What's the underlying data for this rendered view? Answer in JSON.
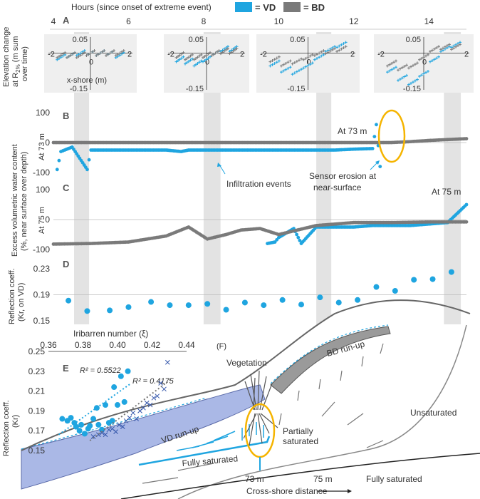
{
  "colors": {
    "vd": "#1fa5e0",
    "bd": "#7a7a7a",
    "highlight": "#f5b400",
    "band": "#e3e3e3",
    "vd_fill": "#aab8e6",
    "bd_fill": "#9a9a9a"
  },
  "header": {
    "hours_title": "Hours (since onset of extreme event)",
    "hour_ticks": [
      "4",
      "6",
      "8",
      "10",
      "12",
      "14"
    ],
    "legend_vd": "= VD",
    "legend_bd": "= BD"
  },
  "panel_a": {
    "letter": "A",
    "ylabel_1": "Elevation change",
    "ylabel_2": "at R",
    "ylabel_2_sub": "2%",
    "ylabel_2_tail": " (m sum",
    "ylabel_3": "over time)",
    "xlabel": "x-shore (m)",
    "insets": [
      {
        "ytop": "0.05",
        "ybot": "-0.15",
        "x_min": "-2",
        "x_zero": "0",
        "x_max": "2"
      },
      {
        "ytop": "0.05",
        "ybot": "-0.15",
        "x_min": "-2",
        "x_zero": "0",
        "x_max": "2"
      },
      {
        "ytop": "0.05",
        "ybot": "-0.15",
        "x_min": "-2",
        "x_zero": "0",
        "x_max": "2"
      },
      {
        "ytop": "0.05",
        "ybot": "-0.15",
        "x_min": "-2",
        "x_zero": "0",
        "x_max": "2"
      }
    ]
  },
  "panel_bc": {
    "ylabel_1": "Excess volumetric water content",
    "ylabel_2": "(%, near surface over depth)",
    "b_letter": "B",
    "b_sub": "At 73 m",
    "b_ticks": [
      "100",
      "0",
      "-100"
    ],
    "b_at": "At 73 m",
    "b_infiltration": "Infiltration events",
    "b_erosion_1": "Sensor erosion at",
    "b_erosion_2": "near-surface",
    "c_letter": "C",
    "c_sub": "At 75 m",
    "c_ticks": [
      "100",
      "0",
      "-100"
    ],
    "c_at": "At 75 m"
  },
  "panel_d": {
    "letter": "D",
    "ylabel_1": "Reflection coeff.",
    "ylabel_2": "(Kr, on VD)",
    "ticks": [
      "0.23",
      "0.19",
      "0.15"
    ]
  },
  "panel_e": {
    "letter": "E",
    "xlabel": "Iribarren number (ξ)",
    "xticks": [
      "0.36",
      "0.38",
      "0.40",
      "0.42",
      "0.44"
    ],
    "ylabel_1": "Reflection coeff.",
    "ylabel_2": "(Kr)",
    "yticks": [
      "0.25",
      "0.23",
      "0.21",
      "0.19",
      "0.17",
      "0.15"
    ],
    "r2_vd": "R² = 0.5522",
    "r2_bd": "R² = 0.4175"
  },
  "panel_f": {
    "letter": "(F)",
    "vegetation": "Vegetation",
    "bd_runup": "BD run-up",
    "vd_runup": "VD run-up",
    "partially_1": "Partially",
    "partially_2": "saturated",
    "fully_saturated_left": "Fully saturated",
    "fully_saturated_right": "Fully saturated",
    "unsaturated": "Unsaturated",
    "m73": "73 m",
    "m75": "75 m",
    "xlabel": "Cross-shore distance"
  },
  "chart_data": [
    {
      "type": "scatter",
      "panel": "A",
      "xlabel": "x-shore (m)",
      "xlim": [
        -2,
        2
      ],
      "ylim": [
        -0.15,
        0.05
      ],
      "series": [
        {
          "name": "VD",
          "insets": [
            {
              "x": [
                -1.5,
                -1.0,
                -0.5,
                0.0,
                0.5,
                1.0,
                1.5
              ],
              "y": [
                -0.02,
                -0.01,
                0.0,
                0.0,
                0.0,
                0.0,
                -0.01
              ]
            },
            {
              "x": [
                -1.5,
                -1.0,
                -0.5,
                0.0,
                0.5,
                1.0,
                1.5
              ],
              "y": [
                -0.03,
                -0.04,
                -0.05,
                -0.03,
                0.0,
                0.02,
                0.02
              ]
            },
            {
              "x": [
                -1.5,
                -1.0,
                -0.5,
                0.0,
                0.5,
                1.0,
                1.5
              ],
              "y": [
                -0.05,
                -0.08,
                -0.09,
                -0.06,
                -0.02,
                0.02,
                0.04
              ]
            },
            {
              "x": [
                -1.5,
                -1.0,
                -0.5,
                0.0,
                0.5,
                1.0,
                1.5
              ],
              "y": [
                -0.08,
                -0.12,
                -0.14,
                -0.1,
                -0.03,
                0.02,
                0.04
              ]
            }
          ]
        },
        {
          "name": "BD",
          "insets": [
            {
              "x": [
                -1.5,
                -1.0,
                -0.5,
                0.0,
                0.5,
                1.0,
                1.5
              ],
              "y": [
                -0.01,
                -0.01,
                -0.01,
                0.0,
                0.0,
                0.0,
                0.0
              ]
            },
            {
              "x": [
                -1.5,
                -1.0,
                -0.5,
                0.0,
                0.5,
                1.0,
                1.5
              ],
              "y": [
                -0.01,
                -0.02,
                -0.02,
                -0.01,
                0.0,
                0.01,
                0.01
              ]
            },
            {
              "x": [
                -1.5,
                -1.0,
                -0.5,
                0.0,
                0.5,
                1.0,
                1.5
              ],
              "y": [
                -0.03,
                -0.05,
                -0.04,
                -0.02,
                0.0,
                0.01,
                0.02
              ]
            },
            {
              "x": [
                -1.5,
                -1.0,
                -0.5,
                0.0,
                0.5,
                1.0,
                1.5
              ],
              "y": [
                -0.05,
                -0.07,
                -0.06,
                -0.02,
                0.02,
                0.03,
                0.03
              ]
            }
          ]
        }
      ]
    },
    {
      "type": "scatter",
      "panel": "B",
      "title": "At 73 m",
      "xlabel": "Hours (since onset of extreme event)",
      "xlim": [
        4,
        15
      ],
      "ylim": [
        -100,
        100
      ],
      "series": [
        {
          "name": "VD",
          "x": [
            4.1,
            4.2,
            4.3,
            4.5,
            4.9,
            5.0,
            5.5,
            6.0,
            6.5,
            7.0,
            7.4,
            7.6,
            8.0,
            8.5,
            9.0,
            9.5,
            10.0,
            10.5,
            11.0,
            11.5,
            12.0,
            12.5,
            12.6,
            12.7
          ],
          "y": [
            -90,
            -30,
            -25,
            -15,
            -90,
            -25,
            -25,
            -25,
            -25,
            -25,
            -30,
            -25,
            -25,
            -25,
            -25,
            -25,
            -25,
            -25,
            -25,
            -25,
            -22,
            -20,
            60,
            -80
          ]
        },
        {
          "name": "BD",
          "x": [
            4.0,
            5.0,
            6.0,
            7.0,
            8.0,
            9.0,
            10.0,
            11.0,
            12.0,
            12.5,
            13.0,
            13.5,
            14.0,
            14.5,
            15.0
          ],
          "y": [
            0,
            0,
            0,
            0,
            0,
            0,
            0,
            0,
            0,
            0,
            0,
            3,
            7,
            10,
            13
          ]
        }
      ]
    },
    {
      "type": "scatter",
      "panel": "C",
      "title": "At 75 m",
      "xlim": [
        4,
        15
      ],
      "ylim": [
        -100,
        100
      ],
      "series": [
        {
          "name": "VD",
          "x": [
            9.7,
            9.9,
            10.0,
            10.4,
            10.6,
            11.0,
            11.5,
            12.0,
            12.5,
            13.0,
            13.5,
            14.0,
            14.5,
            15.0
          ],
          "y": [
            -80,
            -75,
            -60,
            -30,
            -80,
            -25,
            -25,
            -25,
            -20,
            -20,
            -20,
            -15,
            -10,
            50
          ]
        },
        {
          "name": "BD",
          "x": [
            4.0,
            5.0,
            6.0,
            7.0,
            7.6,
            8.1,
            8.6,
            9.0,
            9.5,
            10.0,
            10.5,
            11.0,
            11.5,
            12.0,
            13.0,
            14.0,
            15.0
          ],
          "y": [
            -82,
            -80,
            -75,
            -55,
            -25,
            -65,
            -50,
            -35,
            -30,
            -50,
            -35,
            -20,
            -15,
            -10,
            -10,
            -8,
            -8
          ]
        }
      ]
    },
    {
      "type": "scatter",
      "panel": "D",
      "ylabel": "Reflection coeff. (Kr, on VD)",
      "xlim": [
        4,
        15
      ],
      "ylim": [
        0.15,
        0.23
      ],
      "series": [
        {
          "name": "VD",
          "x": [
            4.4,
            4.9,
            5.5,
            6.0,
            6.6,
            7.1,
            7.6,
            8.1,
            8.6,
            9.1,
            9.6,
            10.1,
            10.6,
            11.1,
            11.6,
            12.1,
            12.6,
            13.1,
            13.6,
            14.1,
            14.6
          ],
          "y": [
            0.181,
            0.165,
            0.166,
            0.171,
            0.179,
            0.174,
            0.174,
            0.176,
            0.167,
            0.178,
            0.174,
            0.182,
            0.175,
            0.186,
            0.178,
            0.182,
            0.202,
            0.196,
            0.213,
            0.214,
            0.225
          ]
        }
      ]
    },
    {
      "type": "scatter",
      "panel": "E",
      "xlabel": "Iribarren number (ξ)",
      "ylabel": "Reflection coeff. (Kr)",
      "xlim": [
        0.36,
        0.44
      ],
      "ylim": [
        0.15,
        0.25
      ],
      "series": [
        {
          "name": "VD",
          "trend_r2": 0.5522,
          "x": [
            0.368,
            0.371,
            0.373,
            0.375,
            0.376,
            0.378,
            0.379,
            0.381,
            0.383,
            0.384,
            0.386,
            0.388,
            0.389,
            0.391,
            0.393,
            0.395,
            0.397,
            0.398,
            0.4,
            0.402,
            0.404,
            0.406
          ],
          "y": [
            0.182,
            0.18,
            0.183,
            0.178,
            0.174,
            0.17,
            0.176,
            0.167,
            0.172,
            0.175,
            0.182,
            0.193,
            0.176,
            0.171,
            0.196,
            0.178,
            0.18,
            0.214,
            0.196,
            0.225,
            0.199,
            0.23
          ]
        },
        {
          "name": "BD",
          "trend_r2": 0.4175,
          "x": [
            0.386,
            0.389,
            0.391,
            0.393,
            0.395,
            0.397,
            0.399,
            0.401,
            0.403,
            0.405,
            0.407,
            0.409,
            0.411,
            0.413,
            0.415,
            0.417,
            0.419,
            0.421,
            0.423,
            0.425,
            0.427,
            0.429
          ],
          "y": [
            0.164,
            0.166,
            0.168,
            0.166,
            0.171,
            0.172,
            0.169,
            0.176,
            0.174,
            0.18,
            0.183,
            0.188,
            0.182,
            0.19,
            0.193,
            0.198,
            0.196,
            0.203,
            0.205,
            0.218,
            0.212,
            0.239
          ]
        }
      ]
    }
  ]
}
